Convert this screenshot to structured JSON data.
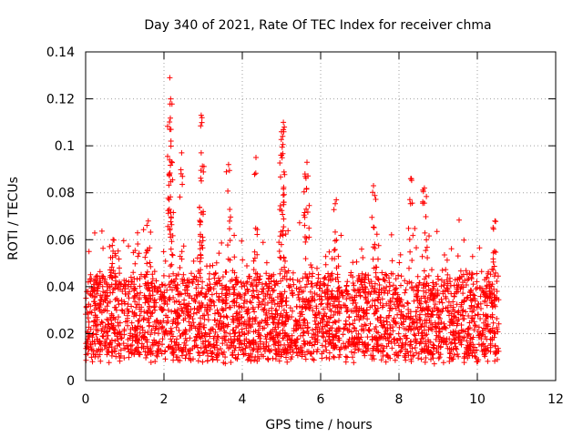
{
  "chart_data": {
    "type": "scatter",
    "title": "Day 340 of 2021, Rate Of TEC Index for receiver chma",
    "xlabel": "GPS time / hours",
    "ylabel": "ROTI / TECUs",
    "xlim": [
      0,
      12
    ],
    "ylim": [
      0,
      0.14
    ],
    "x_ticks": [
      0,
      2,
      4,
      6,
      8,
      10,
      12
    ],
    "x_tick_labels": [
      "0",
      "2",
      "4",
      "6",
      "8",
      "10",
      "12"
    ],
    "y_ticks": [
      0,
      0.02,
      0.04,
      0.06,
      0.08,
      0.1,
      0.12,
      0.14
    ],
    "y_tick_labels": [
      "0",
      "0.02",
      "0.04",
      "0.06",
      "0.08",
      "0.1",
      "0.12",
      "0.14"
    ],
    "grid": true,
    "marker": "+",
    "marker_color": "#ff0000",
    "series": [
      {
        "name": "ROTI",
        "notable_points": [
          {
            "x": 2.15,
            "y": 0.129
          },
          {
            "x": 2.17,
            "y": 0.12
          },
          {
            "x": 2.15,
            "y": 0.107
          },
          {
            "x": 2.18,
            "y": 0.102
          },
          {
            "x": 2.95,
            "y": 0.113
          },
          {
            "x": 2.97,
            "y": 0.112
          },
          {
            "x": 2.95,
            "y": 0.097
          },
          {
            "x": 5.05,
            "y": 0.11
          },
          {
            "x": 5.0,
            "y": 0.106
          },
          {
            "x": 5.03,
            "y": 0.104
          },
          {
            "x": 5.0,
            "y": 0.096
          },
          {
            "x": 5.65,
            "y": 0.093
          },
          {
            "x": 5.6,
            "y": 0.088
          },
          {
            "x": 4.35,
            "y": 0.095
          },
          {
            "x": 3.65,
            "y": 0.092
          },
          {
            "x": 2.45,
            "y": 0.097
          },
          {
            "x": 8.3,
            "y": 0.086
          },
          {
            "x": 8.65,
            "y": 0.082
          },
          {
            "x": 7.35,
            "y": 0.083
          },
          {
            "x": 6.4,
            "y": 0.077
          },
          {
            "x": 10.45,
            "y": 0.068
          },
          {
            "x": 0.7,
            "y": 0.06
          },
          {
            "x": 1.6,
            "y": 0.068
          }
        ],
        "x_range": [
          0,
          10.55
        ],
        "typical_band": [
          0.01,
          0.045
        ],
        "point_count_approx": 3000
      }
    ]
  }
}
